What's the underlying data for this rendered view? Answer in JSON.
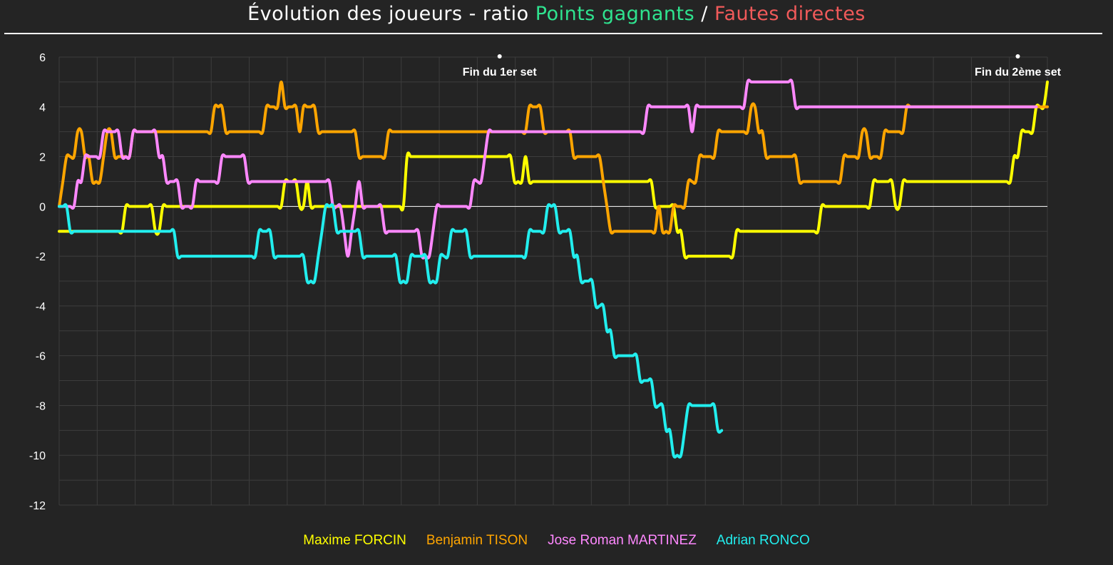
{
  "title": {
    "prefix": "Évolution des joueurs - ratio ",
    "winners": "Points gagnants",
    "separator": " / ",
    "errors": "Fautes directes",
    "winners_color": "#2fe38f",
    "errors_color": "#f15a5a"
  },
  "chart_data": {
    "type": "line",
    "ylim": [
      -12,
      6
    ],
    "yticks": [
      "6",
      "4",
      "2",
      "0",
      "-2",
      "-4",
      "-6",
      "-8",
      "-10",
      "-12"
    ],
    "grid": true,
    "legend_position": "bottom",
    "annotations": [
      {
        "label": "Fin du 1er set",
        "x": 119
      },
      {
        "label": "Fin du 2ème set",
        "x": 259
      }
    ],
    "series": [
      {
        "name": "Maxime FORCIN",
        "color": "#ffff00",
        "values": [
          -1,
          -1,
          -1,
          -1,
          -1,
          -1,
          -1,
          -1,
          -1,
          -1,
          -1,
          -1,
          -1,
          -1,
          -1,
          -1,
          -1,
          -1,
          0,
          0,
          0,
          0,
          0,
          0,
          0,
          0,
          -1,
          -1,
          0,
          0,
          0,
          0,
          0,
          0,
          0,
          0,
          0,
          0,
          0,
          0,
          0,
          0,
          0,
          0,
          0,
          0,
          0,
          0,
          0,
          0,
          0,
          0,
          0,
          0,
          0,
          0,
          0,
          0,
          0,
          0,
          0,
          1,
          1,
          1,
          1,
          0,
          0,
          1,
          0,
          0,
          0,
          0,
          0,
          0,
          0,
          0,
          0,
          0,
          0,
          0,
          0,
          0,
          0,
          0,
          0,
          0,
          0,
          0,
          0,
          0,
          0,
          0,
          0,
          0,
          2,
          2,
          2,
          2,
          2,
          2,
          2,
          2,
          2,
          2,
          2,
          2,
          2,
          2,
          2,
          2,
          2,
          2,
          2,
          2,
          2,
          2,
          2,
          2,
          2,
          2,
          2,
          2,
          2,
          1,
          1,
          1,
          2,
          1,
          1,
          1,
          1,
          1,
          1,
          1,
          1,
          1,
          1,
          1,
          1,
          1,
          1,
          1,
          1,
          1,
          1,
          1,
          1,
          1,
          1,
          1,
          1,
          1,
          1,
          1,
          1,
          1,
          1,
          1,
          1,
          1,
          1,
          0,
          0,
          0,
          0,
          0,
          0,
          -1,
          -1,
          -2,
          -2,
          -2,
          -2,
          -2,
          -2,
          -2,
          -2,
          -2,
          -2,
          -2,
          -2,
          -2,
          -2,
          -1,
          -1,
          -1,
          -1,
          -1,
          -1,
          -1,
          -1,
          -1,
          -1,
          -1,
          -1,
          -1,
          -1,
          -1,
          -1,
          -1,
          -1,
          -1,
          -1,
          -1,
          -1,
          -1,
          0,
          0,
          0,
          0,
          0,
          0,
          0,
          0,
          0,
          0,
          0,
          0,
          0,
          0,
          1,
          1,
          1,
          1,
          1,
          1,
          0,
          0,
          1,
          1,
          1,
          1,
          1,
          1,
          1,
          1,
          1,
          1,
          1,
          1,
          1,
          1,
          1,
          1,
          1,
          1,
          1,
          1,
          1,
          1,
          1,
          1,
          1,
          1,
          1,
          1,
          1,
          1,
          2,
          2,
          3,
          3,
          3,
          3,
          4,
          4,
          4,
          5
        ]
      },
      {
        "name": "Benjamin TISON",
        "color": "#ffa500",
        "values": [
          0,
          1,
          2,
          2,
          2,
          3,
          3,
          2,
          2,
          1,
          1,
          1,
          2,
          3,
          3,
          2,
          2,
          2,
          2,
          2,
          3,
          3,
          3,
          3,
          3,
          3,
          3,
          3,
          3,
          3,
          3,
          3,
          3,
          3,
          3,
          3,
          3,
          3,
          3,
          3,
          3,
          3,
          4,
          4,
          4,
          3,
          3,
          3,
          3,
          3,
          3,
          3,
          3,
          3,
          3,
          3,
          4,
          4,
          4,
          4,
          5,
          4,
          4,
          4,
          4,
          3,
          4,
          4,
          4,
          4,
          3,
          3,
          3,
          3,
          3,
          3,
          3,
          3,
          3,
          3,
          3,
          2,
          2,
          2,
          2,
          2,
          2,
          2,
          2,
          3,
          3,
          3,
          3,
          3,
          3,
          3,
          3,
          3,
          3,
          3,
          3,
          3,
          3,
          3,
          3,
          3,
          3,
          3,
          3,
          3,
          3,
          3,
          3,
          3,
          3,
          3,
          3,
          3,
          3,
          3,
          3,
          3,
          3,
          3,
          3,
          3,
          3,
          4,
          4,
          4,
          4,
          3,
          3,
          3,
          3,
          3,
          3,
          3,
          3,
          2,
          2,
          2,
          2,
          2,
          2,
          2,
          2,
          1,
          0,
          -1,
          -1,
          -1,
          -1,
          -1,
          -1,
          -1,
          -1,
          -1,
          -1,
          -1,
          -1,
          -1,
          0,
          -1,
          -1,
          -1,
          0,
          0,
          0,
          0,
          1,
          1,
          1,
          2,
          2,
          2,
          2,
          2,
          3,
          3,
          3,
          3,
          3,
          3,
          3,
          3,
          3,
          4,
          4,
          3,
          3,
          2,
          2,
          2,
          2,
          2,
          2,
          2,
          2,
          2,
          1,
          1,
          1,
          1,
          1,
          1,
          1,
          1,
          1,
          1,
          1,
          1,
          2,
          2,
          2,
          2,
          2,
          3,
          3,
          2,
          2,
          2,
          2,
          3,
          3,
          3,
          3,
          3,
          3,
          4,
          4,
          4,
          4,
          4,
          4,
          4,
          4,
          4,
          4,
          4,
          4,
          4,
          4,
          4,
          4,
          4,
          4,
          4,
          4,
          4,
          4,
          4,
          4,
          4,
          4,
          4,
          4,
          4,
          4,
          4,
          4,
          4,
          4,
          4,
          4,
          4,
          4,
          4
        ]
      },
      {
        "name": "Jose Roman MARTINEZ",
        "color": "#ff88ff",
        "values": [
          0,
          0,
          0,
          0,
          0,
          1,
          1,
          2,
          2,
          2,
          2,
          2,
          3,
          3,
          3,
          3,
          3,
          2,
          2,
          2,
          3,
          3,
          3,
          3,
          3,
          3,
          3,
          2,
          2,
          1,
          1,
          1,
          1,
          0,
          0,
          0,
          0,
          1,
          1,
          1,
          1,
          1,
          1,
          1,
          2,
          2,
          2,
          2,
          2,
          2,
          2,
          1,
          1,
          1,
          1,
          1,
          1,
          1,
          1,
          1,
          1,
          1,
          1,
          1,
          1,
          1,
          1,
          1,
          1,
          1,
          1,
          1,
          1,
          1,
          0,
          0,
          0,
          -1,
          -2,
          -1,
          0,
          1,
          0,
          0,
          0,
          0,
          0,
          0,
          -1,
          -1,
          -1,
          -1,
          -1,
          -1,
          -1,
          -1,
          -1,
          -1,
          -2,
          -2,
          -2,
          -1,
          0,
          0,
          0,
          0,
          0,
          0,
          0,
          0,
          0,
          0,
          1,
          1,
          1,
          2,
          3,
          3,
          3,
          3,
          3,
          3,
          3,
          3,
          3,
          3,
          3,
          3,
          3,
          3,
          3,
          3,
          3,
          3,
          3,
          3,
          3,
          3,
          3,
          3,
          3,
          3,
          3,
          3,
          3,
          3,
          3,
          3,
          3,
          3,
          3,
          3,
          3,
          3,
          3,
          3,
          3,
          3,
          3,
          4,
          4,
          4,
          4,
          4,
          4,
          4,
          4,
          4,
          4,
          4,
          4,
          3,
          4,
          4,
          4,
          4,
          4,
          4,
          4,
          4,
          4,
          4,
          4,
          4,
          4,
          4,
          5,
          5,
          5,
          5,
          5,
          5,
          5,
          5,
          5,
          5,
          5,
          5,
          5,
          4,
          4,
          4,
          4,
          4,
          4,
          4,
          4,
          4,
          4,
          4,
          4,
          4,
          4,
          4,
          4,
          4,
          4,
          4,
          4,
          4,
          4,
          4,
          4,
          4,
          4,
          4,
          4,
          4,
          4,
          4,
          4,
          4,
          4,
          4,
          4,
          4,
          4,
          4,
          4,
          4,
          4,
          4,
          4,
          4,
          4,
          4,
          4,
          4,
          4,
          4,
          4,
          4,
          4,
          4,
          4,
          4,
          4,
          4,
          4,
          4,
          4,
          4,
          4,
          4,
          4
        ]
      },
      {
        "name": "Adrian RONCO",
        "color": "#22eeee",
        "values": [
          0,
          0,
          0,
          -1,
          -1,
          -1,
          -1,
          -1,
          -1,
          -1,
          -1,
          -1,
          -1,
          -1,
          -1,
          -1,
          -1,
          -1,
          -1,
          -1,
          -1,
          -1,
          -1,
          -1,
          -1,
          -1,
          -1,
          -1,
          -1,
          -1,
          -1,
          -1,
          -2,
          -2,
          -2,
          -2,
          -2,
          -2,
          -2,
          -2,
          -2,
          -2,
          -2,
          -2,
          -2,
          -2,
          -2,
          -2,
          -2,
          -2,
          -2,
          -2,
          -2,
          -2,
          -1,
          -1,
          -1,
          -1,
          -2,
          -2,
          -2,
          -2,
          -2,
          -2,
          -2,
          -2,
          -2,
          -3,
          -3,
          -3,
          -2,
          -1,
          0,
          0,
          0,
          -1,
          -1,
          -1,
          -1,
          -1,
          -1,
          -1,
          -2,
          -2,
          -2,
          -2,
          -2,
          -2,
          -2,
          -2,
          -2,
          -2,
          -3,
          -3,
          -3,
          -2,
          -2,
          -2,
          -2,
          -2,
          -3,
          -3,
          -3,
          -2,
          -2,
          -2,
          -1,
          -1,
          -1,
          -1,
          -1,
          -2,
          -2,
          -2,
          -2,
          -2,
          -2,
          -2,
          -2,
          -2,
          -2,
          -2,
          -2,
          -2,
          -2,
          -2,
          -2,
          -1,
          -1,
          -1,
          -1,
          -1,
          0,
          0,
          0,
          -1,
          -1,
          -1,
          -1,
          -2,
          -2,
          -3,
          -3,
          -3,
          -3,
          -4,
          -4,
          -4,
          -5,
          -5,
          -6,
          -6,
          -6,
          -6,
          -6,
          -6,
          -6,
          -7,
          -7,
          -7,
          -7,
          -8,
          -8,
          -8,
          -9,
          -9,
          -10,
          -10,
          -10,
          -9,
          -8,
          -8,
          -8,
          -8,
          -8,
          -8,
          -8,
          -8,
          -9,
          -9
        ]
      }
    ]
  }
}
